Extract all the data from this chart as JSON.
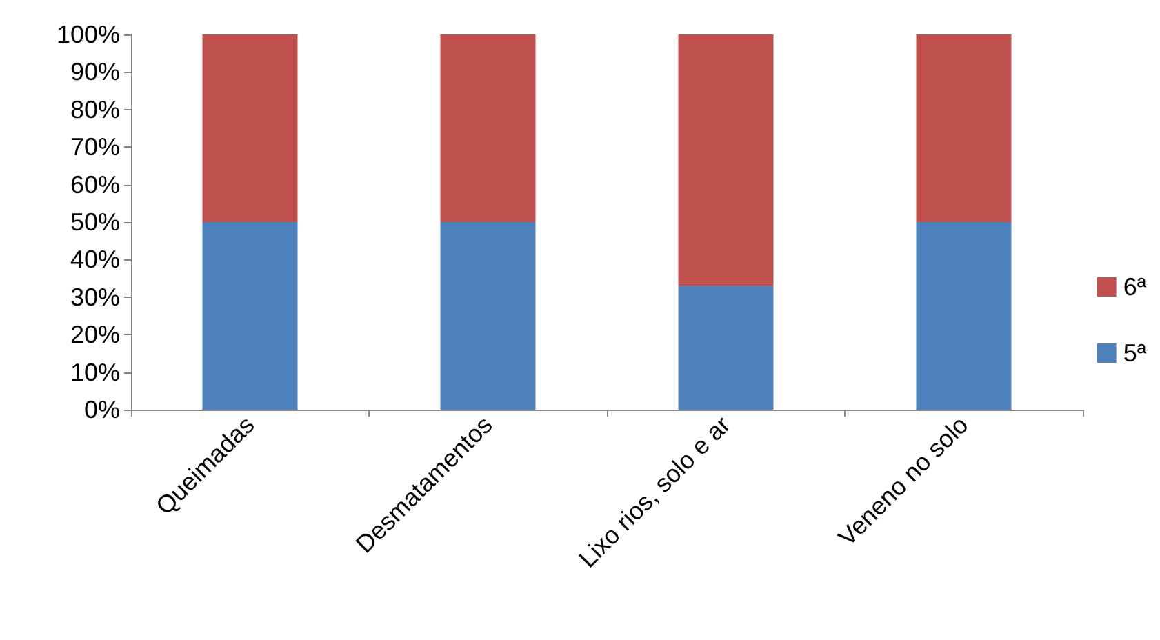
{
  "chart_data": {
    "type": "bar",
    "stacked": true,
    "categories": [
      "Queimadas",
      "Desmatamentos",
      "Lixo rios, solo e ar",
      "Veneno no solo"
    ],
    "series": [
      {
        "name": "5ª",
        "color": "#4f81bd",
        "values": [
          50,
          50,
          33,
          50
        ]
      },
      {
        "name": "6ª",
        "color": "#c0504d",
        "values": [
          50,
          50,
          67,
          50
        ]
      }
    ],
    "ylim": [
      0,
      100
    ],
    "yticks": [
      {
        "value": 0,
        "label": "0%"
      },
      {
        "value": 10,
        "label": "10%"
      },
      {
        "value": 20,
        "label": "20%"
      },
      {
        "value": 30,
        "label": "30%"
      },
      {
        "value": 40,
        "label": "40%"
      },
      {
        "value": 50,
        "label": "50%"
      },
      {
        "value": 60,
        "label": "60%"
      },
      {
        "value": 70,
        "label": "70%"
      },
      {
        "value": 80,
        "label": "80%"
      },
      {
        "value": 90,
        "label": "90%"
      },
      {
        "value": 100,
        "label": "100%"
      }
    ],
    "grid": false,
    "legend": "right"
  }
}
